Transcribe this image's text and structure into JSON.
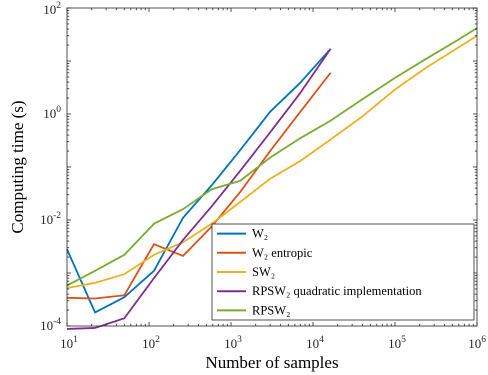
{
  "chart_data": {
    "type": "line",
    "xlabel": "Number of samples",
    "ylabel": "Computing time (s)",
    "xscale": "log",
    "yscale": "log",
    "xlim": [
      10,
      1000000
    ],
    "ylim": [
      0.0001,
      100
    ],
    "x_ticks": [
      {
        "value": 10,
        "base": "10",
        "exp": "1"
      },
      {
        "value": 100,
        "base": "10",
        "exp": "2"
      },
      {
        "value": 1000,
        "base": "10",
        "exp": "3"
      },
      {
        "value": 10000,
        "base": "10",
        "exp": "4"
      },
      {
        "value": 100000,
        "base": "10",
        "exp": "5"
      },
      {
        "value": 1000000,
        "base": "10",
        "exp": "6"
      }
    ],
    "y_ticks": [
      {
        "value": 0.0001,
        "base": "10",
        "exp": "-4"
      },
      {
        "value": 0.01,
        "base": "10",
        "exp": "-2"
      },
      {
        "value": 1,
        "base": "10",
        "exp": "0"
      },
      {
        "value": 100,
        "base": "10",
        "exp": "2"
      }
    ],
    "grid": false,
    "box": true,
    "legend_position": "bottom-right",
    "series": [
      {
        "name": "W₂",
        "color": "#0072BD",
        "x": [
          10,
          22,
          50,
          115,
          260,
          580,
          1300,
          3000,
          7000,
          16400
        ],
        "y": [
          0.0028,
          0.00018,
          0.00035,
          0.0011,
          0.011,
          0.045,
          0.21,
          1.1,
          3.9,
          17
        ]
      },
      {
        "name": "W₂ entropic",
        "color": "#D95319",
        "x": [
          10,
          22,
          50,
          115,
          260,
          580,
          1300,
          3000,
          7000,
          16400
        ],
        "y": [
          0.00034,
          0.00033,
          0.00038,
          0.0035,
          0.0021,
          0.0075,
          0.034,
          0.2,
          1.1,
          6
        ]
      },
      {
        "name": "SW₂",
        "color": "#EDB120",
        "x": [
          10,
          22,
          50,
          115,
          260,
          580,
          1300,
          3000,
          7000,
          16400,
          40000,
          100000,
          240000,
          560000,
          1000000
        ],
        "y": [
          0.00052,
          0.00065,
          0.00095,
          0.0022,
          0.0038,
          0.0085,
          0.022,
          0.06,
          0.13,
          0.33,
          0.9,
          2.9,
          7.5,
          17,
          30
        ]
      },
      {
        "name": "RPSW₂ quadratic implementation",
        "color": "#7E2F8E",
        "x": [
          10,
          22,
          50,
          115,
          260,
          580,
          1300,
          3000,
          7000,
          16400
        ],
        "y": [
          8.8e-05,
          9.2e-05,
          0.00014,
          0.0008,
          0.0042,
          0.018,
          0.085,
          0.45,
          2.5,
          17
        ]
      },
      {
        "name": "RPSW₂",
        "color": "#77AC30",
        "x": [
          10,
          22,
          50,
          115,
          260,
          580,
          1300,
          3000,
          7000,
          16400,
          40000,
          100000,
          240000,
          560000,
          1000000
        ],
        "y": [
          0.00058,
          0.0011,
          0.0022,
          0.0085,
          0.016,
          0.038,
          0.055,
          0.15,
          0.35,
          0.75,
          1.9,
          4.8,
          11,
          24,
          42
        ]
      }
    ]
  }
}
